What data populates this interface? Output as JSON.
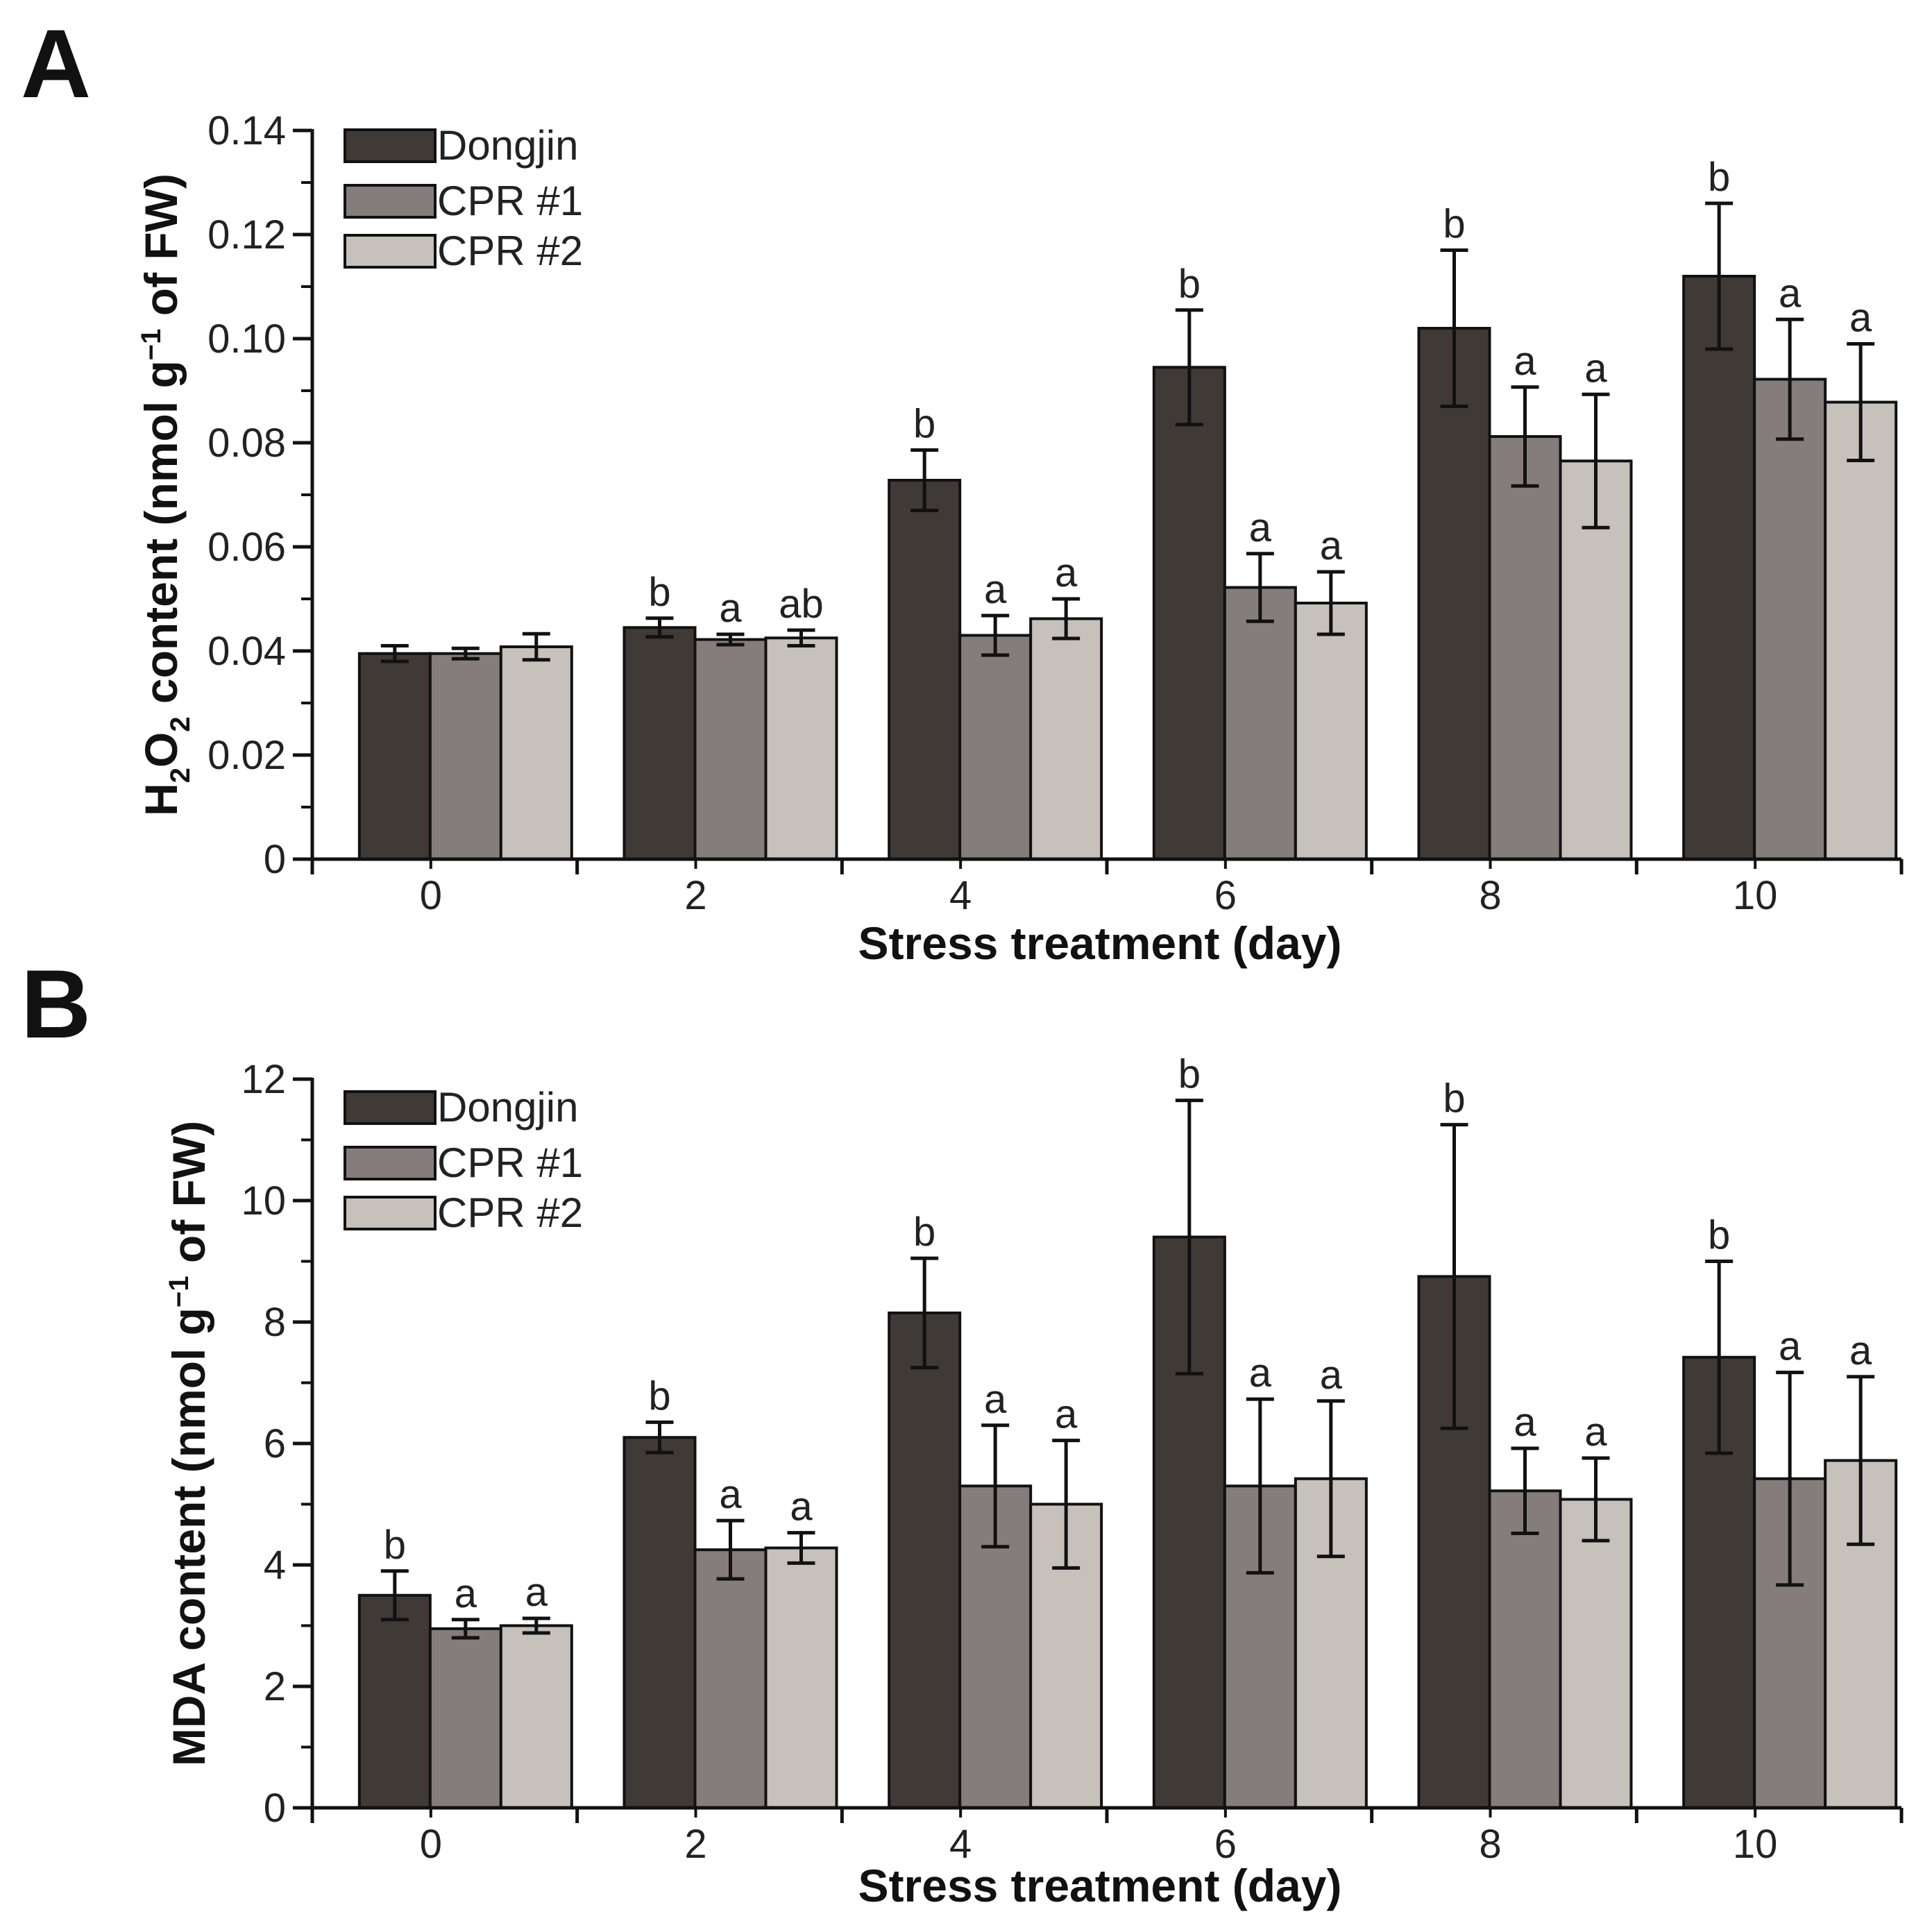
{
  "colors": {
    "Dongjin": "#403a37",
    "CPR #1": "#857d7b",
    "CPR #2": "#c7c1bc",
    "axis": "#111111"
  },
  "chart_data": [
    {
      "panel_label": "A",
      "type": "bar",
      "xlabel": "Stress treatment (day)",
      "ylabel_parts": [
        "H",
        "2",
        "O",
        "2",
        " content (nmol g",
        "−1",
        " of FW)"
      ],
      "ylim": [
        0,
        0.14
      ],
      "yticks": [
        "0",
        "0.02",
        "0.04",
        "0.06",
        "0.08",
        "0.10",
        "0.12",
        "0.14"
      ],
      "categories": [
        "0",
        "2",
        "4",
        "6",
        "8",
        "10"
      ],
      "series": [
        {
          "name": "Dongjin",
          "values": [
            0.0395,
            0.0445,
            0.0728,
            0.0945,
            0.102,
            0.112
          ],
          "errors": [
            0.0015,
            0.0018,
            0.0058,
            0.011,
            0.015,
            0.014
          ],
          "letters": [
            "",
            "b",
            "b",
            "b",
            "b",
            "b"
          ]
        },
        {
          "name": "CPR #1",
          "values": [
            0.0395,
            0.0422,
            0.043,
            0.0522,
            0.0812,
            0.0922
          ],
          "errors": [
            0.001,
            0.001,
            0.0038,
            0.0065,
            0.0095,
            0.0115
          ],
          "letters": [
            "",
            "a",
            "a",
            "a",
            "a",
            "a"
          ]
        },
        {
          "name": "CPR #2",
          "values": [
            0.0408,
            0.0425,
            0.0462,
            0.0492,
            0.0765,
            0.0878
          ],
          "errors": [
            0.0025,
            0.0015,
            0.0038,
            0.006,
            0.0128,
            0.0112
          ],
          "letters": [
            "",
            "ab",
            "a",
            "a",
            "a",
            "a"
          ]
        }
      ]
    },
    {
      "panel_label": "B",
      "type": "bar",
      "xlabel": "Stress treatment (day)",
      "ylabel_parts": [
        "MDA content (nmol g",
        "−1",
        " of FW)"
      ],
      "ylim": [
        0,
        12
      ],
      "yticks": [
        "0",
        "2",
        "4",
        "6",
        "8",
        "10",
        "12"
      ],
      "categories": [
        "0",
        "2",
        "4",
        "6",
        "8",
        "10"
      ],
      "series": [
        {
          "name": "Dongjin",
          "values": [
            3.5,
            6.1,
            8.15,
            9.4,
            8.75,
            7.42
          ],
          "errors": [
            0.4,
            0.25,
            0.9,
            2.25,
            2.5,
            1.58
          ],
          "letters": [
            "b",
            "b",
            "b",
            "b",
            "b",
            "b"
          ]
        },
        {
          "name": "CPR #1",
          "values": [
            2.95,
            4.25,
            5.3,
            5.3,
            5.22,
            5.42
          ],
          "errors": [
            0.15,
            0.48,
            1.0,
            1.43,
            0.7,
            1.75
          ],
          "letters": [
            "a",
            "a",
            "a",
            "a",
            "a",
            "a"
          ]
        },
        {
          "name": "CPR #2",
          "values": [
            3.0,
            4.28,
            5.0,
            5.42,
            5.08,
            5.72
          ],
          "errors": [
            0.12,
            0.25,
            1.05,
            1.28,
            0.68,
            1.38
          ],
          "letters": [
            "a",
            "a",
            "a",
            "a",
            "a",
            "a"
          ]
        }
      ]
    }
  ]
}
